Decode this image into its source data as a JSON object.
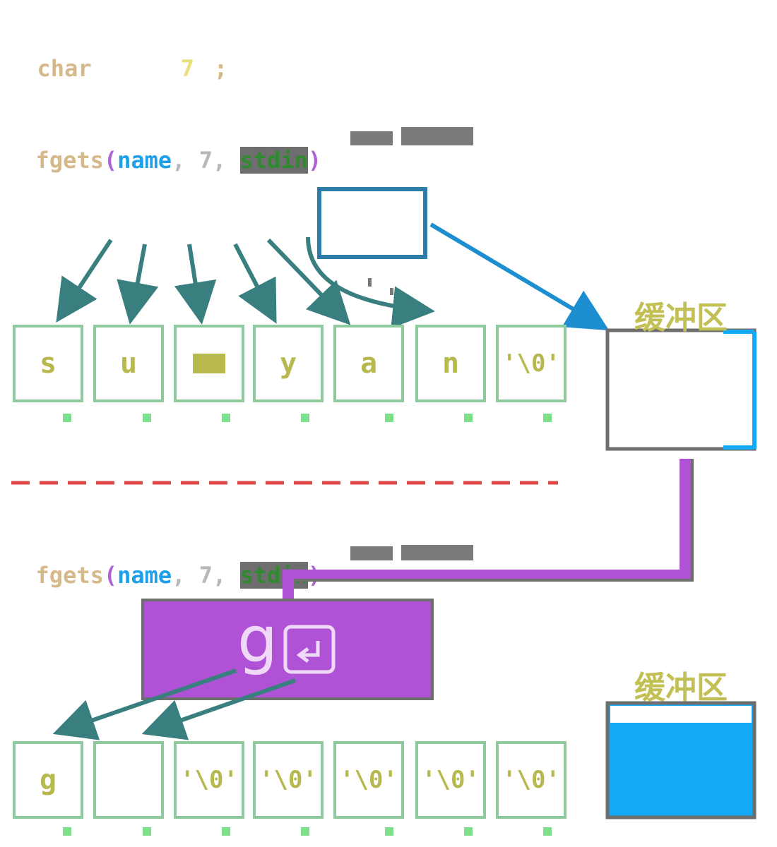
{
  "line1": {
    "type": "char",
    "size": "7",
    "end": ";"
  },
  "call1": {
    "func": "fgets",
    "open": "(",
    "arg1": "name",
    "sep1": ",",
    "arg2": "7",
    "sep2": ",",
    "arg3": "stdin",
    "close": ")"
  },
  "call2": {
    "func": "fgets",
    "open": "(",
    "arg1": "name",
    "sep1": ",",
    "arg2": "7",
    "sep2": ",",
    "arg3": "stdin",
    "close": ")"
  },
  "buffer_label": "缓冲区",
  "buffer_label_2": "缓冲区",
  "row1": [
    "s",
    "u",
    "",
    "y",
    "a",
    "n",
    "'\\0'"
  ],
  "row2": [
    "g",
    "",
    "'\\0'",
    "'\\0'",
    "'\\0'",
    "'\\0'",
    "'\\0'"
  ],
  "input_char": "g",
  "colors": {
    "accent": "#b052d6",
    "buffer": "#15aaf5",
    "cell_border": "#8fca9f",
    "arrow": "#3a7f7f",
    "divider": "#e04848"
  },
  "icons": [
    "enter-key-icon"
  ]
}
